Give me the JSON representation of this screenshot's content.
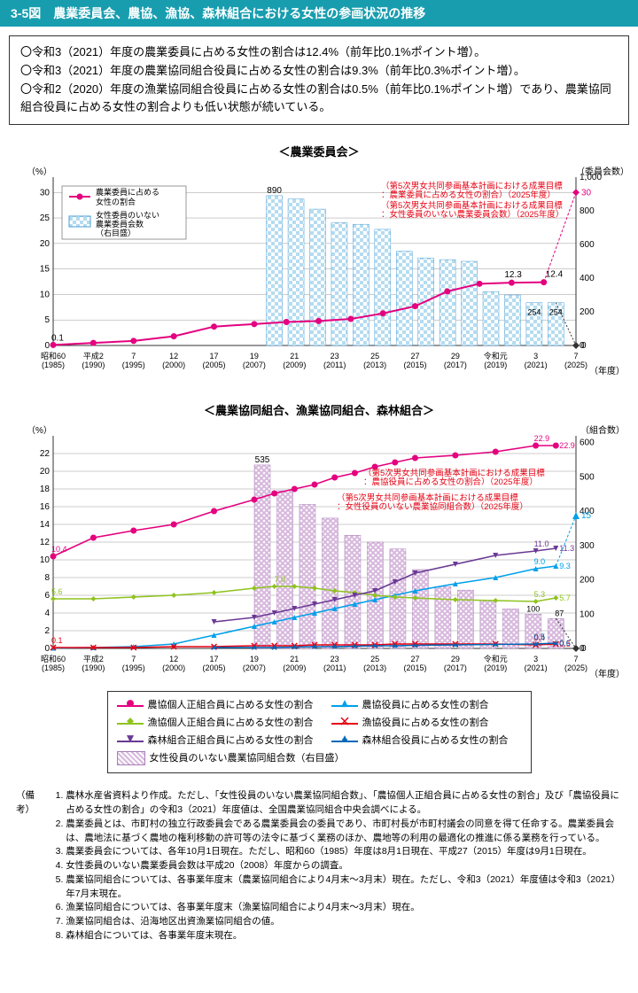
{
  "header": {
    "title": "3-5図　農業委員会、農協、漁協、森林組合における女性の参画状況の推移"
  },
  "summary": {
    "line1": "〇令和3（2021）年度の農業委員に占める女性の割合は12.4%（前年比0.1%ポイント増）。",
    "line2": "〇令和3（2021）年度の農業協同組合役員に占める女性の割合は9.3%（前年比0.3%ポイント増）。",
    "line3": "〇令和2（2020）年度の漁業協同組合役員に占める女性の割合は0.5%（前年比0.1%ポイント増）であり、農業協同組合役員に占める女性の割合よりも低い状態が続いている。"
  },
  "chart1": {
    "title": "＜農業委員会＞",
    "ylabel_left": "（%）",
    "ylabel_right": "（委員会数）",
    "xlabel": "（年度）",
    "y1_ticks": [
      0,
      5,
      10,
      15,
      20,
      25,
      30
    ],
    "y1_max": 33,
    "y2_ticks": [
      0,
      200,
      400,
      600,
      800,
      1000
    ],
    "y2_max": 1000,
    "x_labels": [
      "昭和60\n(1985)",
      "平成2\n(1990)",
      "7\n(1995)",
      "12\n(2000)",
      "17\n(2005)",
      "19\n(2007)",
      "21\n(2009)",
      "23\n(2011)",
      "25\n(2013)",
      "27\n(2015)",
      "29\n(2017)",
      "令和元\n(2019)",
      "3\n(2021)",
      "7\n(2025)"
    ],
    "line": {
      "label": "農業委員に占める\n女性の割合",
      "color": "#e4007f",
      "values": [
        0.1,
        0.5,
        0.9,
        1.8,
        3.7,
        4.2,
        4.6,
        4.8,
        5.2,
        6.3,
        7.7,
        10.6,
        12.1,
        12.3,
        12.4,
        null
      ],
      "label_start": "0.1",
      "label_end1": "12.3",
      "label_end2": "12.4",
      "target": 30,
      "target_label": "30"
    },
    "bars": {
      "label": "女性委員のいない\n農業委員会数\n（右目盛）",
      "color": "#b5dcf0",
      "pattern": "check",
      "values": [
        890,
        870,
        810,
        730,
        720,
        690,
        560,
        520,
        510,
        500,
        320,
        300,
        254,
        254
      ],
      "label_start": "890",
      "label_end1": "254",
      "label_end2": "254",
      "target": 0,
      "target_label": "0"
    },
    "note1": "（第5次男女共同参画基本計画における成果目標\n：農業委員に占める女性の割合）（2025年度）",
    "note2": "（第5次男女共同参画基本計画における成果目標\n：女性委員のいない農業委員会数）（2025年度）"
  },
  "chart2": {
    "title": "＜農業協同組合、漁業協同組合、森林組合＞",
    "ylabel_left": "（%）",
    "ylabel_right": "（組合数）",
    "xlabel": "（年度）",
    "y1_ticks": [
      0,
      2,
      4,
      6,
      8,
      10,
      12,
      14,
      16,
      18,
      20,
      22
    ],
    "y1_max": 24,
    "y2_ticks": [
      0,
      100,
      200,
      300,
      400,
      500,
      600
    ],
    "y2_max": 620,
    "x_labels": [
      "昭和60\n(1985)",
      "平成2\n(1990)",
      "7\n(1995)",
      "12\n(2000)",
      "17\n(2005)",
      "19\n(2007)",
      "21\n(2009)",
      "23\n(2011)",
      "25\n(2013)",
      "27\n(2015)",
      "29\n(2017)",
      "令和元\n(2019)",
      "3\n(2021)",
      "7\n(2025)"
    ],
    "series": [
      {
        "name": "農協個人正組合員",
        "label": "農協個人正組合員に占める女性の割合",
        "color": "#e4007f",
        "marker": "circle",
        "values": [
          10.4,
          12.5,
          13.3,
          14.0,
          15.5,
          16.8,
          17.5,
          18.0,
          18.5,
          19.3,
          19.8,
          20.5,
          21.0,
          21.5,
          21.8,
          22.2,
          22.9,
          22.9
        ],
        "label_start": "10.4",
        "label_end": "22.9",
        "label_prev": "22.9"
      },
      {
        "name": "農協役員",
        "label": "農協役員に占める女性の割合",
        "color": "#00a0e9",
        "marker": "triangle",
        "values": [
          0.05,
          0.1,
          0.2,
          0.5,
          1.5,
          2.5,
          3.0,
          3.5,
          4.0,
          4.5,
          5.0,
          5.5,
          6.0,
          6.5,
          7.3,
          8.0,
          9.0,
          9.3
        ],
        "label_end": "9.3",
        "label_prev": "9.0",
        "target": 15,
        "target_label": "15"
      },
      {
        "name": "漁協個人正組合員",
        "label": "漁協個人正組合員に占める女性の割合",
        "color": "#8fc31f",
        "marker": "diamond",
        "values": [
          5.6,
          5.6,
          5.8,
          6.0,
          6.3,
          6.8,
          7.0,
          7.0,
          6.8,
          6.5,
          6.3,
          6.0,
          5.8,
          5.7,
          5.5,
          5.4,
          5.3,
          5.7
        ],
        "label_start": "5.6",
        "label_mid": "7.0",
        "label_end": "5.7",
        "label_prev": "5.3"
      },
      {
        "name": "漁協役員",
        "label": "漁協役員に占める女性の割合",
        "color": "#e60012",
        "marker": "x",
        "values": [
          0.1,
          0.1,
          0.1,
          0.2,
          0.2,
          0.3,
          0.3,
          0.3,
          0.4,
          0.4,
          0.4,
          0.4,
          0.5,
          0.5,
          0.5,
          0.5,
          0.4,
          0.5
        ],
        "label_start": "0.1",
        "label_end": "0.5",
        "label_prev": "0.4"
      },
      {
        "name": "森林正組合員",
        "label": "森林組合正組合員に占める女性の割合",
        "color": "#6a3994",
        "marker": "triangle-down",
        "values": [
          null,
          null,
          null,
          null,
          3.0,
          3.5,
          4.0,
          4.5,
          5.0,
          5.5,
          6.0,
          6.5,
          7.5,
          8.5,
          9.5,
          10.5,
          11.0,
          11.3
        ],
        "label_end": "11.3",
        "label_prev": "11.0"
      },
      {
        "name": "森林役員",
        "label": "森林組合役員に占める女性の割合",
        "color": "#0068b7",
        "marker": "star",
        "values": [
          null,
          null,
          null,
          null,
          0.1,
          0.1,
          0.1,
          0.15,
          0.2,
          0.2,
          0.25,
          0.3,
          0.3,
          0.35,
          0.4,
          0.45,
          0.5,
          0.6
        ],
        "label_end": "0.6",
        "label_prev": "0.5"
      }
    ],
    "bars": {
      "label": "女性役員のいない農業協同組合数（右目盛）",
      "color": "#d7b8dd",
      "pattern": "diag",
      "values": [
        535,
        460,
        420,
        380,
        330,
        310,
        290,
        230,
        180,
        170,
        140,
        115,
        100,
        87
      ],
      "label_start": "535",
      "label_end": "87",
      "label_prev": "100",
      "target": 0,
      "target_label": "0"
    },
    "note1": "（第5次男女共同参画基本計画における成果目標\n：農協役員に占める女性の割合）（2025年度）",
    "note2": "（第5次男女共同参画基本計画における成果目標\n：女性役員のいない農業協同組合数）（2025年度）"
  },
  "notes": {
    "header": "（備考）",
    "items": [
      "農林水産省資料より作成。ただし、「女性役員のいない農業協同組合数」、「農協個人正組合員に占める女性の割合」及び「農協役員に占める女性の割合」の令和3（2021）年度値は、全国農業協同組合中央会調べによる。",
      "農業委員とは、市町村の独立行政委員会である農業委員会の委員であり、市町村長が市町村議会の同意を得て任命する。農業委員会は、農地法に基づく農地の権利移動の許可等の法令に基づく業務のほか、農地等の利用の最適化の推進に係る業務を行っている。",
      "農業委員会については、各年10月1日現在。ただし、昭和60（1985）年度は8月1日現在、平成27（2015）年度は9月1日現在。",
      "女性委員のいない農業委員会数は平成20（2008）年度からの調査。",
      "農業協同組合については、各事業年度末（農業協同組合により4月末～3月末）現在。ただし、令和3（2021）年度値は令和3（2021）年7月末現在。",
      "漁業協同組合については、各事業年度末（漁業協同組合により4月末～3月末）現在。",
      "漁業協同組合は、沿海地区出資漁業協同組合の値。",
      "森林組合については、各事業年度末現在。"
    ]
  },
  "colors": {
    "grid": "#808080",
    "axis": "#333333",
    "bg": "#ffffff"
  }
}
